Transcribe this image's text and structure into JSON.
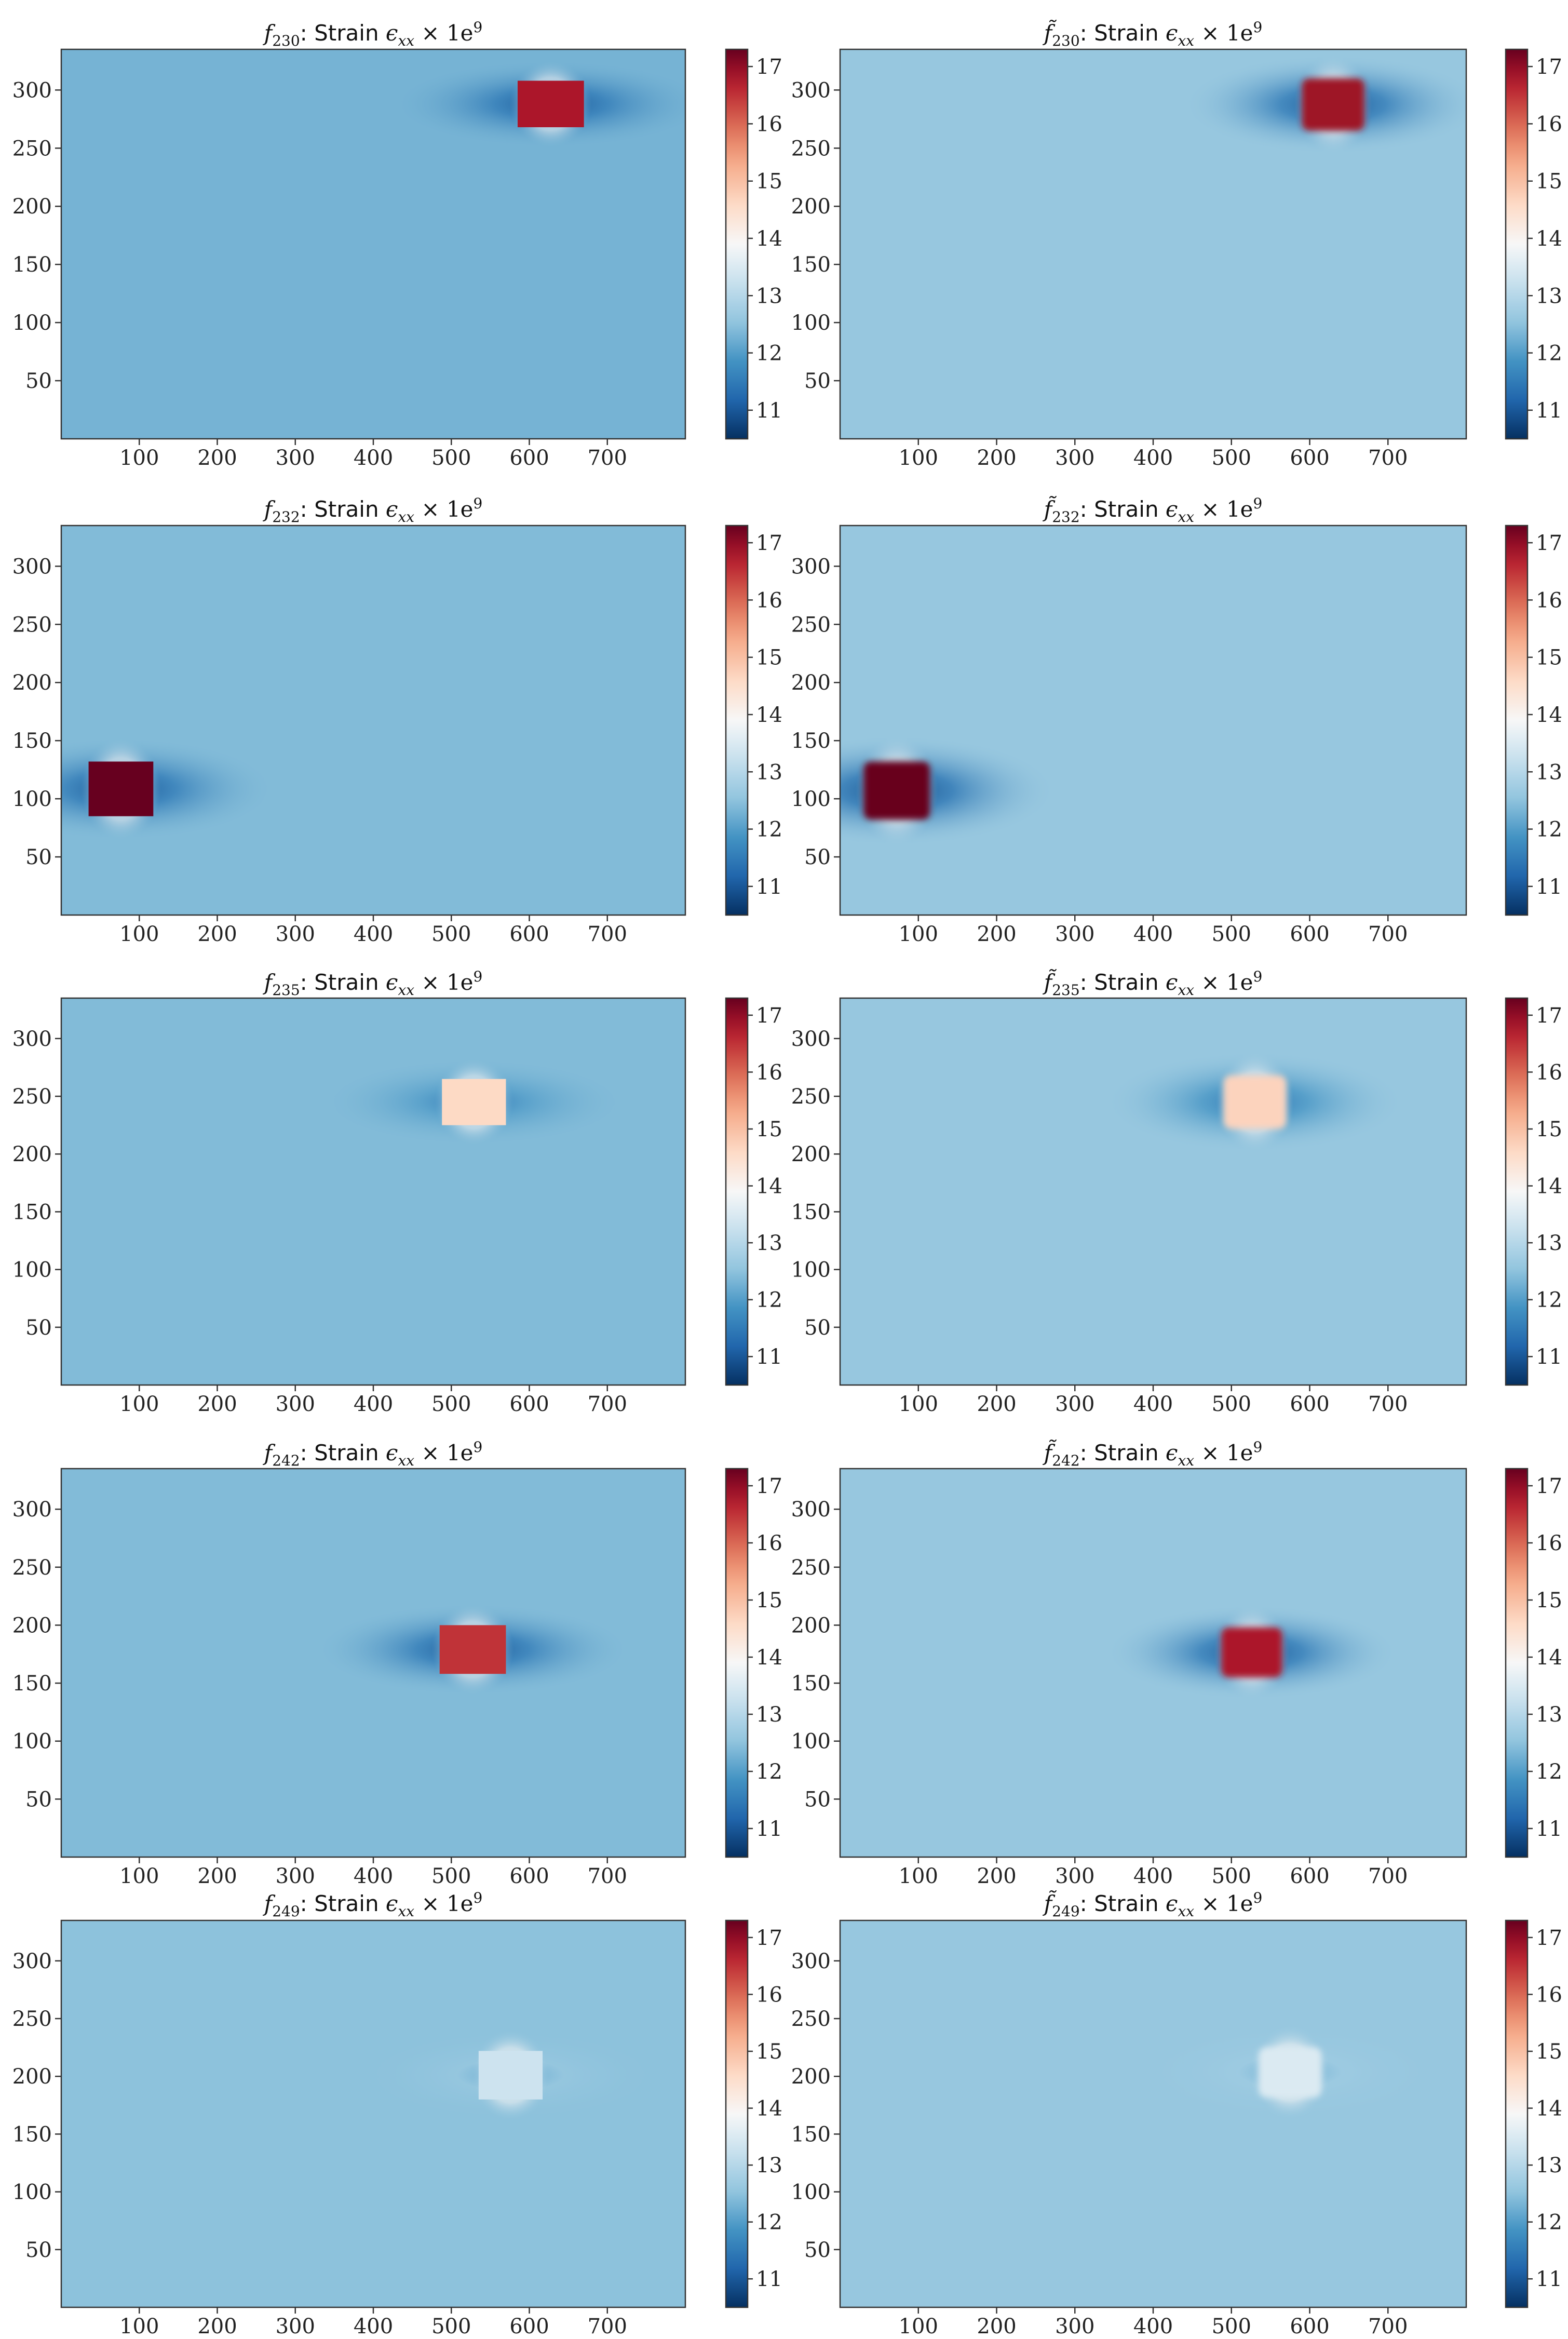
{
  "chart_data": [
    {
      "type": "heatmap",
      "title": {
        "func": "f",
        "tilde": false,
        "sub": "230",
        "mid": ": Strain ",
        "eps": "ϵ",
        "epssub": "xx",
        "tail": " × 1e",
        "sup": "9"
      },
      "xticks": [
        "100",
        "200",
        "300",
        "400",
        "500",
        "600",
        "700"
      ],
      "yticks": [
        "50",
        "100",
        "150",
        "200",
        "250",
        "300"
      ],
      "xlim": [
        0,
        800
      ],
      "ylim": [
        0,
        335
      ],
      "colorbar": {
        "ticks": [
          "11",
          "12",
          "13",
          "14",
          "15",
          "16",
          "17"
        ],
        "range": [
          10.5,
          17.3
        ],
        "colormap": "RdBu_r"
      },
      "background_value": 12.3,
      "feature": {
        "x": [
          585,
          670
        ],
        "y": [
          268,
          308
        ],
        "value": 16.8,
        "style": "sharp",
        "edge": 11.0
      }
    },
    {
      "type": "heatmap",
      "title": {
        "func": "f",
        "tilde": true,
        "sub": "230",
        "mid": ": Strain ",
        "eps": "ϵ",
        "epssub": "xx",
        "tail": " × 1e",
        "sup": "9"
      },
      "xticks": [
        "100",
        "200",
        "300",
        "400",
        "500",
        "600",
        "700"
      ],
      "yticks": [
        "50",
        "100",
        "150",
        "200",
        "250",
        "300"
      ],
      "xlim": [
        0,
        800
      ],
      "ylim": [
        0,
        335
      ],
      "colorbar": {
        "ticks": [
          "11",
          "12",
          "13",
          "14",
          "15",
          "16",
          "17"
        ],
        "range": [
          10.5,
          17.3
        ],
        "colormap": "RdBu_r"
      },
      "background_value": 12.6,
      "feature": {
        "x": [
          590,
          670
        ],
        "y": [
          265,
          310
        ],
        "value": 16.9,
        "style": "blurred",
        "edge": 11.0
      }
    },
    {
      "type": "heatmap",
      "title": {
        "func": "f",
        "tilde": false,
        "sub": "232",
        "mid": ": Strain ",
        "eps": "ϵ",
        "epssub": "xx",
        "tail": " × 1e",
        "sup": "9"
      },
      "xticks": [
        "100",
        "200",
        "300",
        "400",
        "500",
        "600",
        "700"
      ],
      "yticks": [
        "50",
        "100",
        "150",
        "200",
        "250",
        "300"
      ],
      "xlim": [
        0,
        800
      ],
      "ylim": [
        0,
        335
      ],
      "colorbar": {
        "ticks": [
          "11",
          "12",
          "13",
          "14",
          "15",
          "16",
          "17"
        ],
        "range": [
          10.5,
          17.3
        ],
        "colormap": "RdBu_r"
      },
      "background_value": 12.4,
      "feature": {
        "x": [
          35,
          118
        ],
        "y": [
          85,
          132
        ],
        "value": 17.3,
        "style": "sharp",
        "edge": 11.0
      }
    },
    {
      "type": "heatmap",
      "title": {
        "func": "f",
        "tilde": true,
        "sub": "232",
        "mid": ": Strain ",
        "eps": "ϵ",
        "epssub": "xx",
        "tail": " × 1e",
        "sup": "9"
      },
      "xticks": [
        "100",
        "200",
        "300",
        "400",
        "500",
        "600",
        "700"
      ],
      "yticks": [
        "50",
        "100",
        "150",
        "200",
        "250",
        "300"
      ],
      "xlim": [
        0,
        800
      ],
      "ylim": [
        0,
        335
      ],
      "colorbar": {
        "ticks": [
          "11",
          "12",
          "13",
          "14",
          "15",
          "16",
          "17"
        ],
        "range": [
          10.5,
          17.3
        ],
        "colormap": "RdBu_r"
      },
      "background_value": 12.6,
      "feature": {
        "x": [
          30,
          115
        ],
        "y": [
          82,
          132
        ],
        "value": 17.3,
        "style": "blurred",
        "edge": 10.9
      }
    },
    {
      "type": "heatmap",
      "title": {
        "func": "f",
        "tilde": false,
        "sub": "235",
        "mid": ": Strain ",
        "eps": "ϵ",
        "epssub": "xx",
        "tail": " × 1e",
        "sup": "9"
      },
      "xticks": [
        "100",
        "200",
        "300",
        "400",
        "500",
        "600",
        "700"
      ],
      "yticks": [
        "50",
        "100",
        "150",
        "200",
        "250",
        "300"
      ],
      "xlim": [
        0,
        800
      ],
      "ylim": [
        0,
        335
      ],
      "colorbar": {
        "ticks": [
          "11",
          "12",
          "13",
          "14",
          "15",
          "16",
          "17"
        ],
        "range": [
          10.5,
          17.3
        ],
        "colormap": "RdBu_r"
      },
      "background_value": 12.4,
      "feature": {
        "x": [
          488,
          570
        ],
        "y": [
          225,
          265
        ],
        "value": 14.6,
        "style": "sharp",
        "edge": 11.5
      }
    },
    {
      "type": "heatmap",
      "title": {
        "func": "f",
        "tilde": true,
        "sub": "235",
        "mid": ": Strain ",
        "eps": "ϵ",
        "epssub": "xx",
        "tail": " × 1e",
        "sup": "9"
      },
      "xticks": [
        "100",
        "200",
        "300",
        "400",
        "500",
        "600",
        "700"
      ],
      "yticks": [
        "50",
        "100",
        "150",
        "200",
        "250",
        "300"
      ],
      "xlim": [
        0,
        800
      ],
      "ylim": [
        0,
        335
      ],
      "colorbar": {
        "ticks": [
          "11",
          "12",
          "13",
          "14",
          "15",
          "16",
          "17"
        ],
        "range": [
          10.5,
          17.3
        ],
        "colormap": "RdBu_r"
      },
      "background_value": 12.6,
      "feature": {
        "x": [
          490,
          570
        ],
        "y": [
          222,
          268
        ],
        "value": 14.7,
        "style": "blurred",
        "edge": 11.4
      }
    },
    {
      "type": "heatmap",
      "title": {
        "func": "f",
        "tilde": false,
        "sub": "242",
        "mid": ": Strain ",
        "eps": "ϵ",
        "epssub": "xx",
        "tail": " × 1e",
        "sup": "9"
      },
      "xticks": [
        "100",
        "200",
        "300",
        "400",
        "500",
        "600",
        "700"
      ],
      "yticks": [
        "50",
        "100",
        "150",
        "200",
        "250",
        "300"
      ],
      "xlim": [
        0,
        800
      ],
      "ylim": [
        0,
        335
      ],
      "colorbar": {
        "ticks": [
          "11",
          "12",
          "13",
          "14",
          "15",
          "16",
          "17"
        ],
        "range": [
          10.5,
          17.3
        ],
        "colormap": "RdBu_r"
      },
      "background_value": 12.4,
      "feature": {
        "x": [
          485,
          570
        ],
        "y": [
          158,
          200
        ],
        "value": 16.5,
        "style": "sharp",
        "edge": 11.0
      }
    },
    {
      "type": "heatmap",
      "title": {
        "func": "f",
        "tilde": true,
        "sub": "242",
        "mid": ": Strain ",
        "eps": "ϵ",
        "epssub": "xx",
        "tail": " × 1e",
        "sup": "9"
      },
      "xticks": [
        "100",
        "200",
        "300",
        "400",
        "500",
        "600",
        "700"
      ],
      "yticks": [
        "50",
        "100",
        "150",
        "200",
        "250",
        "300"
      ],
      "xlim": [
        0,
        800
      ],
      "ylim": [
        0,
        335
      ],
      "colorbar": {
        "ticks": [
          "11",
          "12",
          "13",
          "14",
          "15",
          "16",
          "17"
        ],
        "range": [
          10.5,
          17.3
        ],
        "colormap": "RdBu_r"
      },
      "background_value": 12.6,
      "feature": {
        "x": [
          487,
          565
        ],
        "y": [
          155,
          198
        ],
        "value": 16.8,
        "style": "blurred",
        "edge": 11.0
      }
    },
    {
      "type": "heatmap",
      "title": {
        "func": "f",
        "tilde": false,
        "sub": "249",
        "mid": ": Strain ",
        "eps": "ϵ",
        "epssub": "xx",
        "tail": " × 1e",
        "sup": "9"
      },
      "xticks": [
        "100",
        "200",
        "300",
        "400",
        "500",
        "600",
        "700"
      ],
      "yticks": [
        "50",
        "100",
        "150",
        "200",
        "250",
        "300"
      ],
      "xlim": [
        0,
        800
      ],
      "ylim": [
        0,
        335
      ],
      "colorbar": {
        "ticks": [
          "11",
          "12",
          "13",
          "14",
          "15",
          "16",
          "17"
        ],
        "range": [
          10.5,
          17.3
        ],
        "colormap": "RdBu_r"
      },
      "background_value": 12.5,
      "feature": {
        "x": [
          535,
          617
        ],
        "y": [
          180,
          222
        ],
        "value": 13.3,
        "style": "sharp",
        "edge": 12.1
      }
    },
    {
      "type": "heatmap",
      "title": {
        "func": "f",
        "tilde": true,
        "sub": "249",
        "mid": ": Strain ",
        "eps": "ϵ",
        "epssub": "xx",
        "tail": " × 1e",
        "sup": "9"
      },
      "xticks": [
        "100",
        "200",
        "300",
        "400",
        "500",
        "600",
        "700"
      ],
      "yticks": [
        "50",
        "100",
        "150",
        "200",
        "250",
        "300"
      ],
      "xlim": [
        0,
        800
      ],
      "ylim": [
        0,
        335
      ],
      "colorbar": {
        "ticks": [
          "11",
          "12",
          "13",
          "14",
          "15",
          "16",
          "17"
        ],
        "range": [
          10.5,
          17.3
        ],
        "colormap": "RdBu_r"
      },
      "background_value": 12.6,
      "feature": {
        "x": [
          535,
          615
        ],
        "y": [
          182,
          225
        ],
        "value": 13.5,
        "style": "blurred",
        "edge": 12.2
      }
    }
  ]
}
